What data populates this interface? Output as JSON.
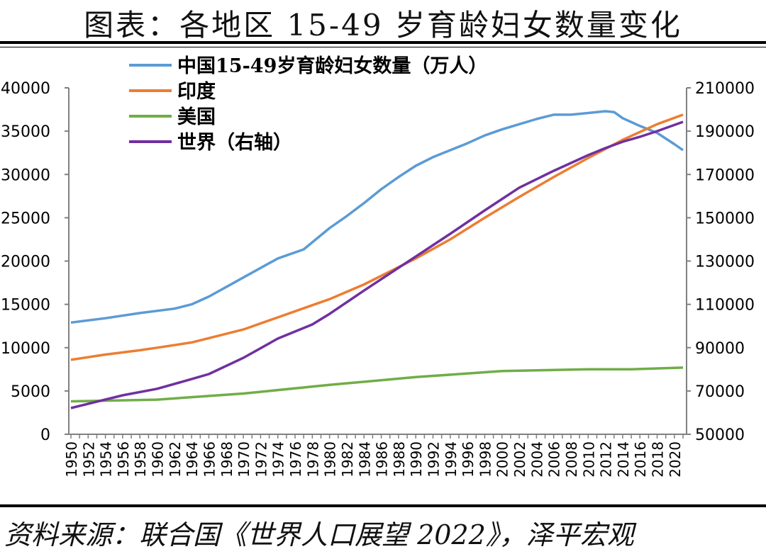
{
  "header": {
    "title": "图表：各地区 15-49 岁育龄妇女数量变化"
  },
  "footer": {
    "source": "资料来源：联合国《世界人口展望 2022》，泽平宏观"
  },
  "chart_data": {
    "type": "line",
    "title": "图表：各地区 15-49 岁育龄妇女数量变化",
    "ylim": [
      0,
      40000
    ],
    "y_ticks": [
      0,
      5000,
      10000,
      15000,
      20000,
      25000,
      30000,
      35000,
      40000
    ],
    "y2lim": [
      50000,
      210000
    ],
    "y2_ticks": [
      50000,
      70000,
      90000,
      110000,
      130000,
      150000,
      170000,
      190000,
      210000
    ],
    "xlim": [
      1950,
      2021
    ],
    "x_ticks": [
      1950,
      1952,
      1954,
      1956,
      1958,
      1960,
      1962,
      1964,
      1966,
      1968,
      1970,
      1972,
      1974,
      1976,
      1978,
      1980,
      1982,
      1984,
      1986,
      1988,
      1990,
      1992,
      1994,
      1996,
      1998,
      2000,
      2002,
      2004,
      2006,
      2008,
      2010,
      2012,
      2014,
      2016,
      2018,
      2020
    ],
    "grid": false,
    "legend_position": "top-left",
    "series": [
      {
        "name": "中国15-49岁育龄妇女数量（万人）",
        "axis": "left",
        "color": "#5B9BD5",
        "x": [
          1950,
          1954,
          1958,
          1962,
          1964,
          1966,
          1968,
          1970,
          1974,
          1977,
          1980,
          1982,
          1984,
          1986,
          1988,
          1990,
          1992,
          1994,
          1996,
          1998,
          2000,
          2002,
          2004,
          2006,
          2008,
          2010,
          2012,
          2013,
          2014,
          2016,
          2018,
          2020,
          2021
        ],
        "y": [
          12900,
          13400,
          14000,
          14500,
          15000,
          15900,
          17000,
          18100,
          20300,
          21350,
          23800,
          25200,
          26700,
          28300,
          29700,
          31000,
          32000,
          32800,
          33600,
          34500,
          35200,
          35800,
          36400,
          36900,
          36900,
          37100,
          37300,
          37200,
          36500,
          35600,
          34800,
          33500,
          32800
        ]
      },
      {
        "name": "印度",
        "axis": "left",
        "color": "#ED7D31",
        "x": [
          1950,
          1954,
          1958,
          1960,
          1964,
          1968,
          1970,
          1974,
          1978,
          1980,
          1984,
          1988,
          1990,
          1994,
          1998,
          2002,
          2006,
          2010,
          2014,
          2018,
          2021
        ],
        "y": [
          8600,
          9200,
          9700,
          10000,
          10600,
          11600,
          12100,
          13500,
          14900,
          15600,
          17300,
          19300,
          20300,
          22500,
          25000,
          27400,
          29700,
          31900,
          34000,
          35800,
          36900
        ]
      },
      {
        "name": "美国",
        "axis": "left",
        "color": "#70AD47",
        "x": [
          1950,
          1960,
          1970,
          1980,
          1990,
          2000,
          2010,
          2015,
          2021
        ],
        "y": [
          3800,
          4000,
          4700,
          5700,
          6600,
          7300,
          7500,
          7500,
          7700
        ]
      },
      {
        "name": "世界（右轴）",
        "axis": "right",
        "color": "#7030A0",
        "x": [
          1950,
          1956,
          1960,
          1964,
          1966,
          1970,
          1974,
          1978,
          1980,
          1984,
          1988,
          1990,
          1994,
          1998,
          2002,
          2006,
          2010,
          2012,
          2014,
          2016,
          2018,
          2021
        ],
        "y": [
          62100,
          68000,
          71000,
          75500,
          77800,
          85300,
          94200,
          100700,
          105600,
          116400,
          126900,
          132100,
          142600,
          153400,
          163900,
          171700,
          178900,
          182200,
          185100,
          187400,
          190000,
          194300
        ]
      }
    ]
  }
}
